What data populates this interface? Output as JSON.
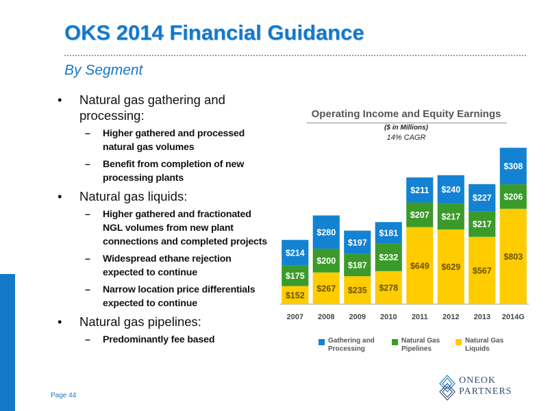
{
  "header": {
    "title": "OKS 2014 Financial Guidance",
    "subtitle": "By Segment"
  },
  "bullets": [
    {
      "text": "Natural gas gathering and processing:",
      "subs": [
        "Higher gathered and processed natural gas volumes",
        "Benefit from completion of new processing plants"
      ]
    },
    {
      "text": "Natural gas liquids:",
      "subs": [
        "Higher gathered and fractionated NGL volumes from new plant connections and completed projects",
        "Widespread ethane rejection expected to continue",
        "Narrow location price differentials expected to continue"
      ]
    },
    {
      "text": "Natural gas pipelines:",
      "subs": [
        "Predominantly fee based"
      ]
    }
  ],
  "chart_data": {
    "type": "bar",
    "stacked": true,
    "title": "Operating Income and Equity Earnings",
    "unit_note": "($ in Millions)",
    "cagr_note": "14% CAGR",
    "categories": [
      "2007",
      "2008",
      "2009",
      "2010",
      "2011",
      "2012",
      "2013",
      "2014G"
    ],
    "series": [
      {
        "name": "Natural Gas Liquids",
        "color": "#ffcc00",
        "values": [
          152,
          267,
          235,
          278,
          649,
          629,
          567,
          803
        ],
        "labels": [
          "$152",
          "$267",
          "$235",
          "$278",
          "$649",
          "$629",
          "$567",
          "$803"
        ]
      },
      {
        "name": "Natural Gas Pipelines",
        "color": "#3a9b2a",
        "values": [
          175,
          200,
          187,
          232,
          207,
          217,
          217,
          206
        ],
        "labels": [
          "$175",
          "$200",
          "$187",
          "$232",
          "$207",
          "$217",
          "$217",
          "$206"
        ]
      },
      {
        "name": "Gathering and Processing",
        "color": "#1382d2",
        "values": [
          214,
          280,
          197,
          181,
          211,
          240,
          227,
          308
        ],
        "labels": [
          "$214",
          "$280",
          "$197",
          "$181",
          "$211",
          "$240",
          "$227",
          "$308"
        ]
      }
    ],
    "legend": [
      {
        "label": "Gathering and Processing",
        "color": "#1382d2"
      },
      {
        "label": "Natural Gas Pipelines",
        "color": "#3a9b2a"
      },
      {
        "label": "Natural Gas Liquids",
        "color": "#ffcc00"
      }
    ],
    "legend_position": "bottom",
    "grid": false,
    "ylim": [
      0,
      1350
    ]
  },
  "footer": {
    "page_label": "Page 44",
    "logo_line1": "ONEOK",
    "logo_line2": "PARTNERS"
  }
}
